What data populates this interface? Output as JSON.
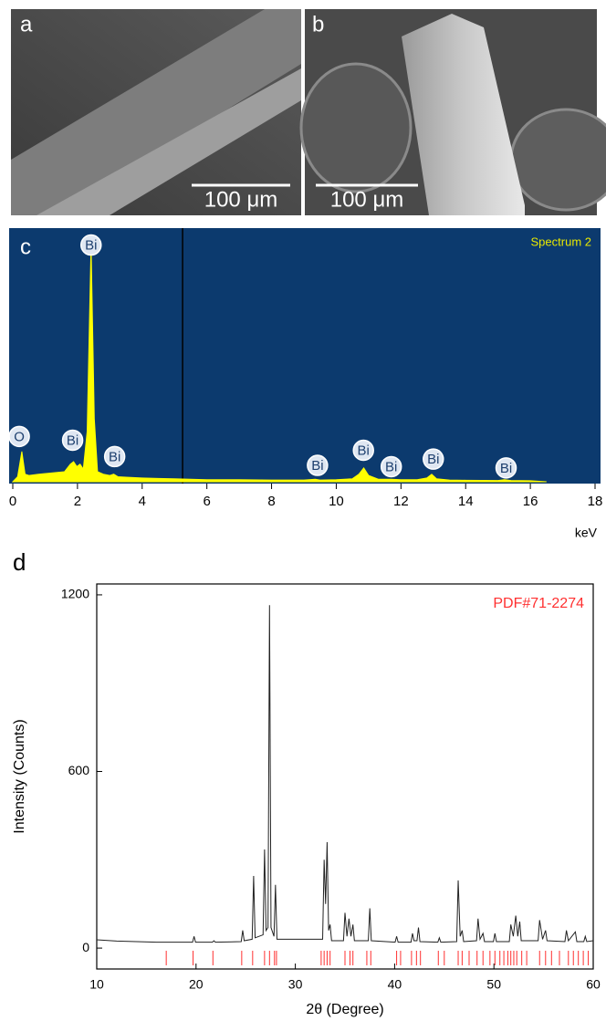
{
  "panels": [
    {
      "label": "a",
      "scale_bar": "100 μm"
    },
    {
      "label": "b",
      "scale_bar": "100 μm"
    }
  ],
  "chart_data": [
    {
      "type": "area",
      "label": "c",
      "legend": "Spectrum 2",
      "xlabel": "keV",
      "color": "#ffff00",
      "background": "#0c3a6e",
      "xlim": [
        0,
        18
      ],
      "xticks": [
        0,
        2,
        4,
        6,
        8,
        10,
        12,
        14,
        16,
        18
      ],
      "ylim": [
        0,
        100
      ],
      "cursor": 5.25,
      "x": [
        0,
        0.15,
        0.28,
        0.38,
        0.5,
        0.8,
        1.2,
        1.6,
        1.78,
        1.88,
        1.98,
        2.08,
        2.18,
        2.3,
        2.42,
        2.52,
        2.62,
        2.8,
        3.0,
        3.12,
        3.25,
        3.5,
        4.0,
        4.5,
        5.0,
        5.5,
        6,
        7,
        8,
        9,
        9.35,
        9.5,
        10,
        10.5,
        10.7,
        10.85,
        11.0,
        11.3,
        11.7,
        12,
        12.5,
        12.8,
        12.95,
        13.1,
        13.5,
        14,
        15,
        15.2,
        15.4,
        16,
        16.5
      ],
      "values": [
        0,
        2,
        12,
        3,
        2.5,
        3,
        3.5,
        4,
        7,
        8,
        6,
        7,
        5,
        20,
        94,
        25,
        4,
        3,
        2.5,
        3,
        2,
        1.8,
        1.5,
        1.3,
        1.2,
        1,
        0.8,
        0.8,
        0.7,
        0.7,
        1,
        0.7,
        0.8,
        1.2,
        3,
        5.5,
        2.5,
        1,
        1,
        0.8,
        0.8,
        1.5,
        3,
        1.2,
        0.7,
        0.6,
        0.5,
        0.8,
        0.5,
        0.4,
        0
      ],
      "annotations": [
        {
          "text": "O",
          "x": 0.2,
          "y": 18
        },
        {
          "text": "Bi",
          "x": 1.85,
          "y": 16.5
        },
        {
          "text": "Bi",
          "x": 2.42,
          "y": 94
        },
        {
          "text": "Bi",
          "x": 3.15,
          "y": 10
        },
        {
          "text": "Bi",
          "x": 9.42,
          "y": 6.5
        },
        {
          "text": "Bi",
          "x": 10.84,
          "y": 12.5
        },
        {
          "text": "Bi",
          "x": 11.7,
          "y": 6
        },
        {
          "text": "Bi",
          "x": 13.0,
          "y": 9
        },
        {
          "text": "Bi",
          "x": 15.25,
          "y": 5.5
        }
      ]
    },
    {
      "type": "line",
      "label": "d",
      "xlabel": "2θ (Degree)",
      "ylabel": "Intensity (Counts)",
      "color": "#222222",
      "xlim": [
        10,
        60
      ],
      "xticks": [
        10,
        20,
        30,
        40,
        50,
        60
      ],
      "ylim": [
        -71,
        1237
      ],
      "yticks": [
        0,
        600,
        1200
      ],
      "x": [
        10,
        12,
        14,
        16,
        18,
        19.65,
        19.8,
        19.95,
        21.65,
        21.8,
        21.95,
        24.55,
        24.7,
        24.85,
        25.65,
        25.8,
        25.95,
        26.75,
        26.9,
        27.05,
        27.25,
        27.4,
        27.55,
        27.85,
        28.0,
        28.15,
        32.75,
        32.9,
        33.05,
        33.2,
        33.35,
        33.5,
        33.65,
        34.85,
        35.0,
        35.2,
        35.4,
        35.6,
        35.8,
        35.95,
        37.35,
        37.5,
        37.65,
        40.05,
        40.2,
        40.35,
        41.65,
        41.8,
        41.95,
        42.25,
        42.4,
        42.55,
        44.35,
        44.5,
        44.65,
        46.25,
        46.4,
        46.6,
        46.8,
        46.95,
        48.25,
        48.4,
        48.6,
        48.9,
        49.05,
        49.95,
        50.1,
        50.25,
        51.55,
        51.7,
        51.95,
        52.2,
        52.4,
        52.6,
        52.75,
        54.45,
        54.6,
        54.9,
        55.2,
        55.35,
        57.15,
        57.3,
        57.5,
        58.2,
        58.35,
        59.05,
        59.2,
        59.35,
        60
      ],
      "values": [
        28,
        24,
        22,
        20,
        20,
        20,
        40,
        20,
        20,
        25,
        20,
        22,
        60,
        25,
        30,
        245,
        35,
        45,
        335,
        60,
        70,
        1165,
        70,
        40,
        215,
        30,
        30,
        300,
        150,
        360,
        60,
        80,
        25,
        25,
        120,
        40,
        100,
        40,
        80,
        25,
        25,
        135,
        25,
        20,
        40,
        20,
        20,
        50,
        25,
        25,
        70,
        22,
        20,
        35,
        20,
        22,
        230,
        40,
        60,
        22,
        25,
        100,
        30,
        50,
        22,
        22,
        50,
        22,
        22,
        80,
        40,
        110,
        40,
        90,
        25,
        25,
        95,
        30,
        60,
        25,
        22,
        60,
        25,
        55,
        22,
        22,
        40,
        22,
        25
      ],
      "reference": {
        "name": "PDF#71-2274",
        "color": "#ff3030",
        "x": [
          17.0,
          19.7,
          21.7,
          24.6,
          25.7,
          26.9,
          27.4,
          27.9,
          28.1,
          32.6,
          32.9,
          33.2,
          33.5,
          35.0,
          35.5,
          35.8,
          37.2,
          37.6,
          40.2,
          40.6,
          41.7,
          42.2,
          42.6,
          44.4,
          45.0,
          46.4,
          46.8,
          47.5,
          48.3,
          48.9,
          49.6,
          50.1,
          50.6,
          51.0,
          51.4,
          51.7,
          52.0,
          52.3,
          52.8,
          53.3,
          54.6,
          55.2,
          55.8,
          56.6,
          57.5,
          58.0,
          58.5,
          59.0,
          59.5
        ]
      }
    }
  ]
}
